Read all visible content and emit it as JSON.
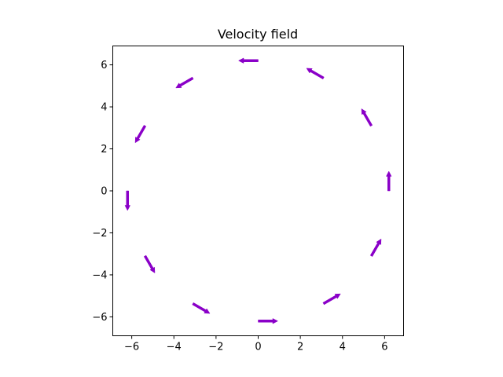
{
  "chart_data": {
    "type": "quiver",
    "title": "Velocity field",
    "xlabel": "",
    "ylabel": "",
    "xlim": [
      -6.9,
      6.9
    ],
    "ylim": [
      -6.9,
      6.9
    ],
    "xticks": [
      -6,
      -4,
      -2,
      0,
      2,
      4,
      6
    ],
    "yticks": [
      -6,
      -4,
      -2,
      0,
      2,
      4,
      6
    ],
    "tick_labels": {
      "x": [
        "−6",
        "−4",
        "−2",
        "0",
        "2",
        "4",
        "6"
      ],
      "y": [
        "−6",
        "−4",
        "−2",
        "0",
        "2",
        "4",
        "6"
      ]
    },
    "grid": false,
    "arrow_color": "#8a00c8",
    "vectors": [
      {
        "x": 6.2,
        "y": 0.0,
        "u": 0.0,
        "v": 1.0
      },
      {
        "x": 5.37,
        "y": 3.1,
        "u": -0.5,
        "v": 0.866
      },
      {
        "x": 3.1,
        "y": 5.37,
        "u": -0.866,
        "v": 0.5
      },
      {
        "x": 0.0,
        "y": 6.2,
        "u": -1.0,
        "v": 0.0
      },
      {
        "x": -3.1,
        "y": 5.37,
        "u": -0.866,
        "v": -0.5
      },
      {
        "x": -5.37,
        "y": 3.1,
        "u": -0.5,
        "v": -0.866
      },
      {
        "x": -6.2,
        "y": 0.0,
        "u": 0.0,
        "v": -1.0
      },
      {
        "x": -5.37,
        "y": -3.1,
        "u": 0.5,
        "v": -0.866
      },
      {
        "x": -3.1,
        "y": -5.37,
        "u": 0.866,
        "v": -0.5
      },
      {
        "x": 0.0,
        "y": -6.2,
        "u": 1.0,
        "v": 0.0
      },
      {
        "x": 3.1,
        "y": -5.37,
        "u": 0.866,
        "v": 0.5
      },
      {
        "x": 5.37,
        "y": -3.1,
        "u": 0.5,
        "v": 0.866
      }
    ]
  }
}
